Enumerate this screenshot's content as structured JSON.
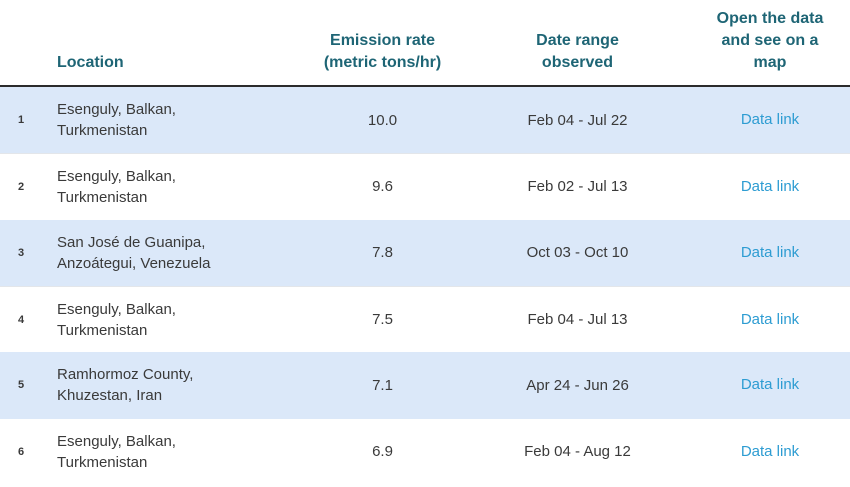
{
  "table": {
    "columns": {
      "num": "",
      "location": "Location",
      "rate": "Emission rate (metric tons/hr)",
      "date": "Date range observed",
      "link": "Open the data and see on a map"
    },
    "link_label": "Data link",
    "rows": [
      {
        "num": "1",
        "location": "Esenguly, Balkan, Turkmenistan",
        "rate": "10.0",
        "date": "Feb 04 - Jul 22"
      },
      {
        "num": "2",
        "location": "Esenguly, Balkan, Turkmenistan",
        "rate": "9.6",
        "date": "Feb 02 - Jul 13"
      },
      {
        "num": "3",
        "location": "San José de Guanipa, Anzoátegui, Venezuela",
        "rate": "7.8",
        "date": "Oct 03 - Oct 10"
      },
      {
        "num": "4",
        "location": "Esenguly, Balkan, Turkmenistan",
        "rate": "7.5",
        "date": "Feb 04 - Jul 13"
      },
      {
        "num": "5",
        "location": "Ramhormoz County, Khuzestan, Iran",
        "rate": "7.1",
        "date": "Apr 24 - Jun 26"
      },
      {
        "num": "6",
        "location": "Esenguly, Balkan, Turkmenistan",
        "rate": "6.9",
        "date": "Feb 04 - Aug 12"
      }
    ],
    "colors": {
      "header_text": "#1e6575",
      "link": "#2d9cd2",
      "row_stripe": "#dbe8f9",
      "body_text": "#3a3a3a",
      "header_border": "#2b2b2b"
    }
  }
}
